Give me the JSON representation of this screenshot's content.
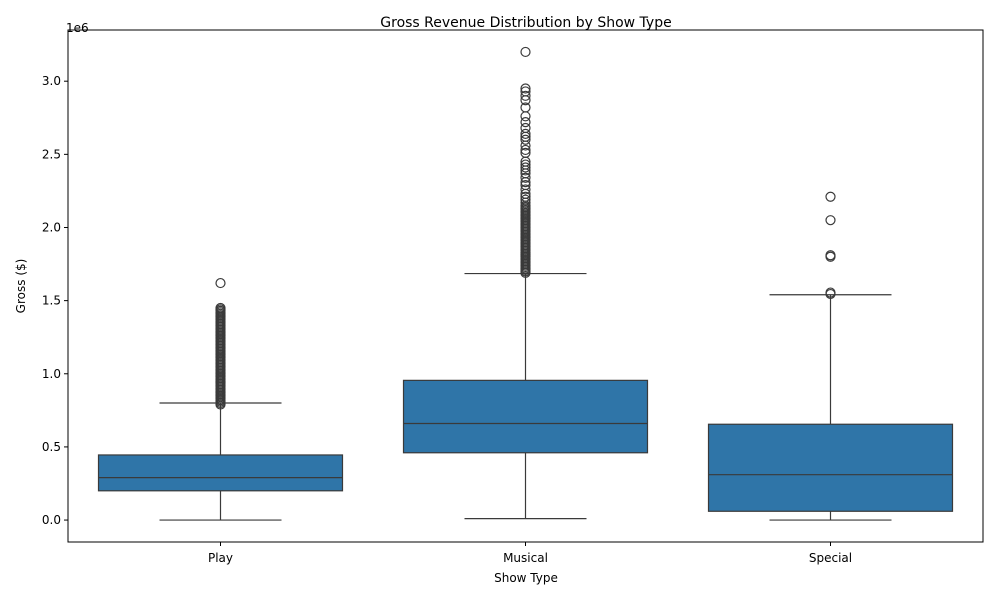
{
  "chart_data": {
    "type": "box",
    "title": "Gross Revenue Distribution by Show Type",
    "xlabel": "Show Type",
    "ylabel": "Gross ($)",
    "y_offset_label": "1e6",
    "ylim": [
      -150000,
      3350000
    ],
    "yticks": [
      {
        "value": 0,
        "label": "0.0"
      },
      {
        "value": 500000,
        "label": "0.5"
      },
      {
        "value": 1000000,
        "label": "1.0"
      },
      {
        "value": 1500000,
        "label": "1.5"
      },
      {
        "value": 2000000,
        "label": "2.0"
      },
      {
        "value": 2500000,
        "label": "2.5"
      },
      {
        "value": 3000000,
        "label": "3.0"
      }
    ],
    "categories": [
      "Play",
      "Musical",
      "Special"
    ],
    "color": "#2f75a8",
    "edge_color": "#3a3a3a",
    "grid": false,
    "boxes": [
      {
        "category": "Play",
        "whisker_low": 0,
        "q1": 200000,
        "median": 290000,
        "q3": 445000,
        "whisker_high": 800000,
        "outliers": [
          790000,
          800000,
          810000,
          820000,
          830000,
          840000,
          850000,
          860000,
          870000,
          880000,
          890000,
          900000,
          910000,
          920000,
          930000,
          940000,
          950000,
          960000,
          970000,
          980000,
          990000,
          1000000,
          1010000,
          1020000,
          1030000,
          1040000,
          1050000,
          1060000,
          1070000,
          1080000,
          1090000,
          1100000,
          1110000,
          1120000,
          1130000,
          1140000,
          1150000,
          1160000,
          1170000,
          1180000,
          1190000,
          1200000,
          1210000,
          1220000,
          1230000,
          1240000,
          1250000,
          1260000,
          1270000,
          1280000,
          1290000,
          1300000,
          1310000,
          1320000,
          1330000,
          1340000,
          1350000,
          1360000,
          1370000,
          1380000,
          1390000,
          1400000,
          1410000,
          1420000,
          1430000,
          1440000,
          1450000,
          1620000
        ]
      },
      {
        "category": "Musical",
        "whisker_low": 10000,
        "q1": 460000,
        "median": 660000,
        "q3": 955000,
        "whisker_high": 1685000,
        "outliers": [
          1690000,
          1700000,
          1710000,
          1720000,
          1730000,
          1740000,
          1750000,
          1760000,
          1770000,
          1780000,
          1790000,
          1800000,
          1810000,
          1820000,
          1830000,
          1840000,
          1850000,
          1860000,
          1870000,
          1880000,
          1890000,
          1900000,
          1910000,
          1920000,
          1930000,
          1940000,
          1950000,
          1960000,
          1970000,
          1980000,
          1990000,
          2000000,
          2010000,
          2020000,
          2030000,
          2040000,
          2050000,
          2060000,
          2070000,
          2080000,
          2090000,
          2100000,
          2110000,
          2120000,
          2130000,
          2140000,
          2150000,
          2170000,
          2190000,
          2210000,
          2230000,
          2260000,
          2290000,
          2310000,
          2340000,
          2370000,
          2390000,
          2410000,
          2430000,
          2450000,
          2510000,
          2530000,
          2560000,
          2600000,
          2620000,
          2640000,
          2680000,
          2720000,
          2760000,
          2820000,
          2870000,
          2900000,
          2930000,
          2950000,
          3200000
        ]
      },
      {
        "category": "Special",
        "whisker_low": 0,
        "q1": 60000,
        "median": 310000,
        "q3": 655000,
        "whisker_high": 1540000,
        "outliers": [
          1545000,
          1555000,
          1800000,
          1810000,
          2050000,
          2210000
        ]
      }
    ]
  }
}
